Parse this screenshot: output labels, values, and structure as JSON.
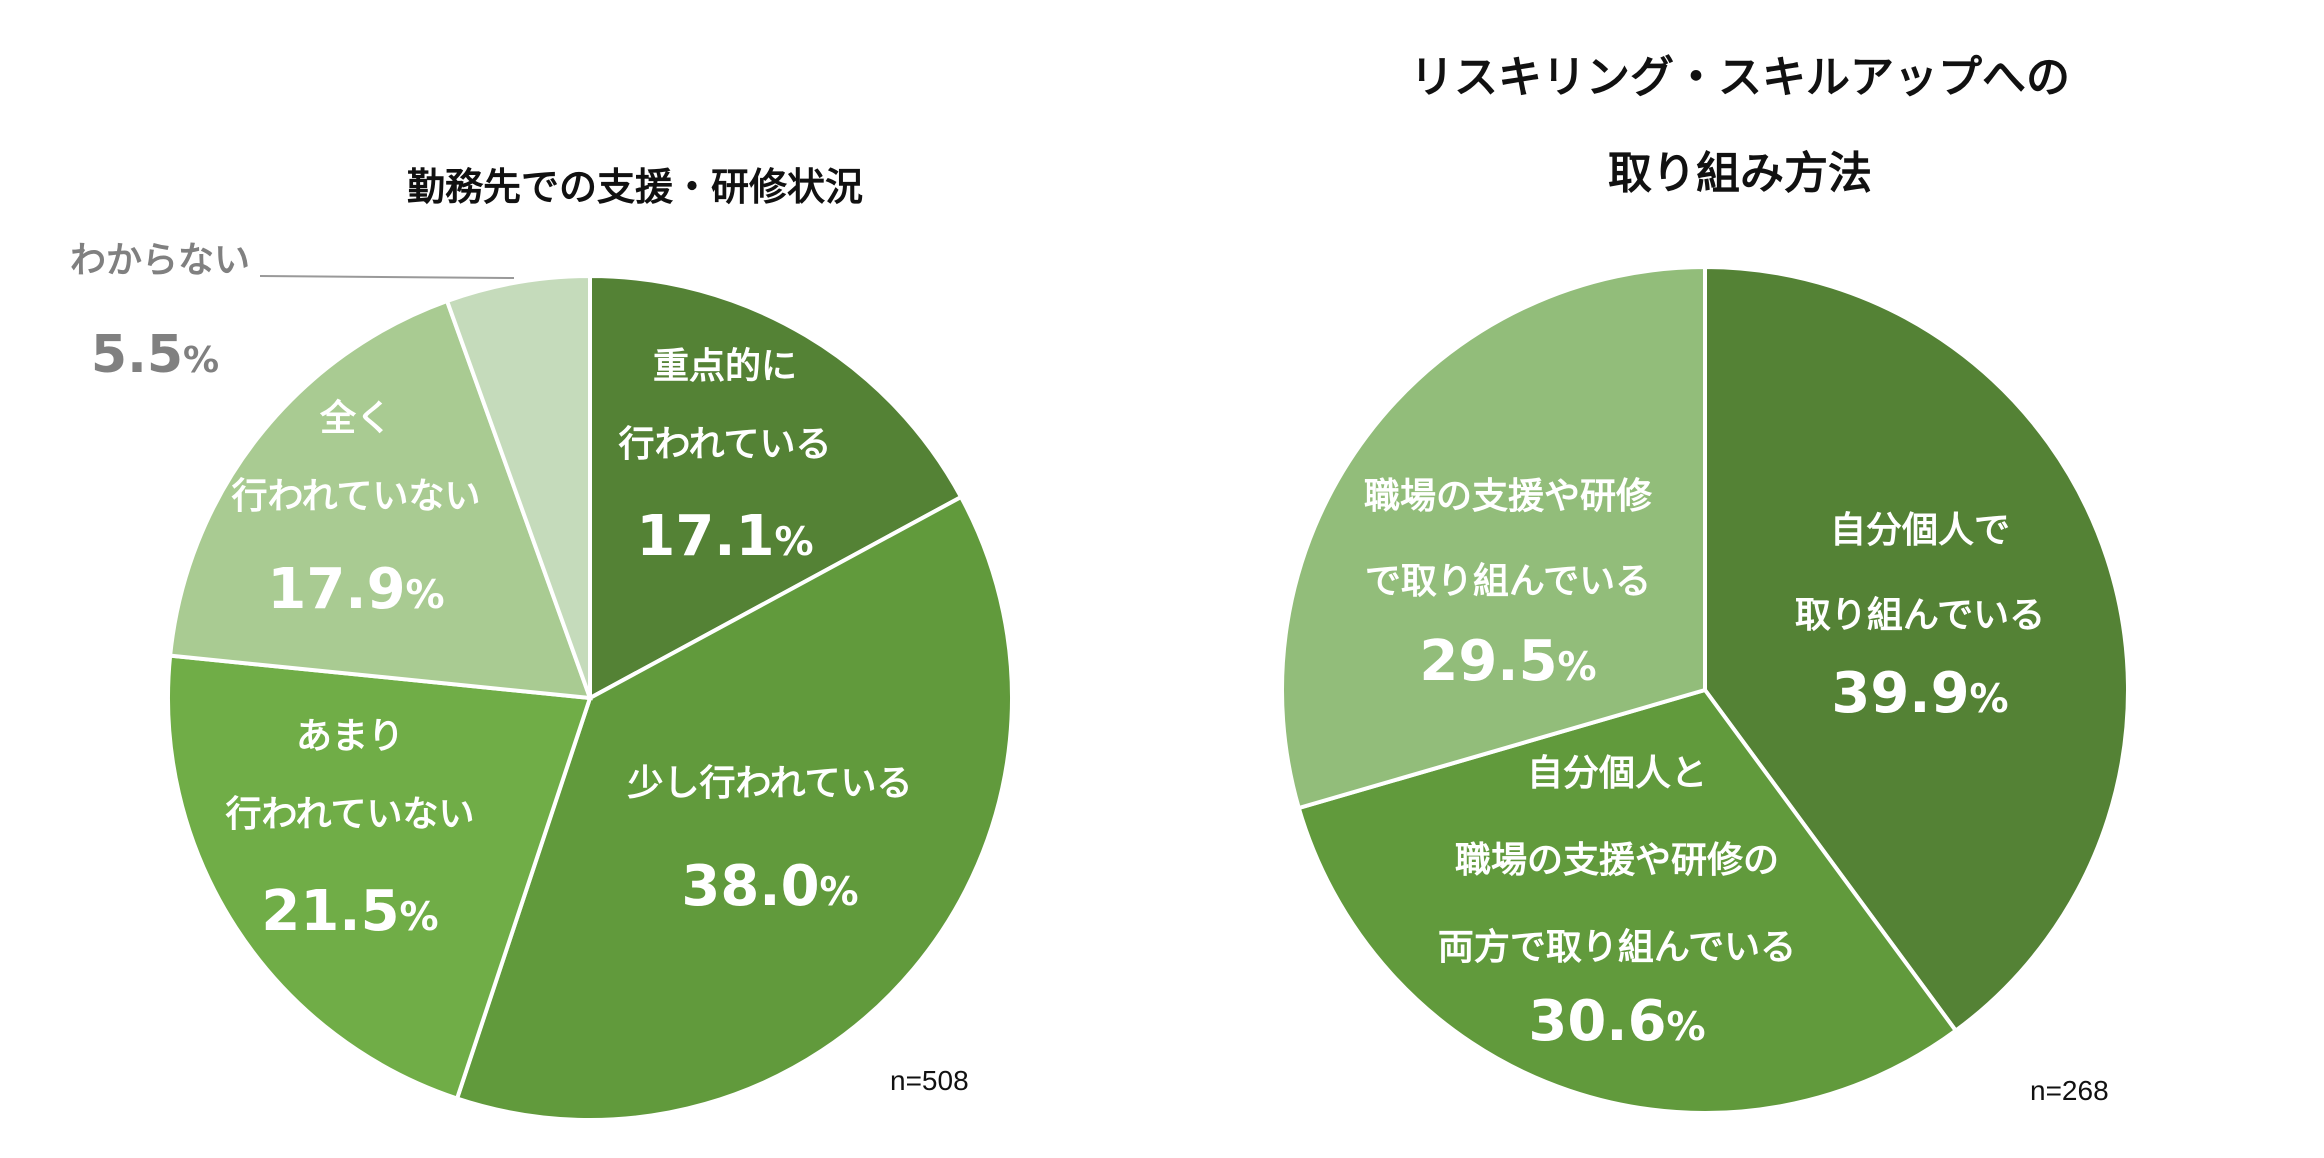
{
  "chart_data": [
    {
      "type": "pie",
      "title": "勤務先での支援・研修状況",
      "n_label": "n=508",
      "slices": [
        {
          "name_lines": [
            "重点的に",
            "行われている"
          ],
          "value": 17.1,
          "value_label": "17.1",
          "color": "#548235",
          "text_color": "#ffffff"
        },
        {
          "name_lines": [
            "少し行われている"
          ],
          "value": 38.0,
          "value_label": "38.0",
          "color": "#619a3c",
          "text_color": "#ffffff"
        },
        {
          "name_lines": [
            "あまり",
            "行われていない"
          ],
          "value": 21.5,
          "value_label": "21.5",
          "color": "#70ad47",
          "text_color": "#ffffff"
        },
        {
          "name_lines": [
            "全く",
            "行われていない"
          ],
          "value": 17.9,
          "value_label": "17.9",
          "color": "#a9cb92",
          "text_color": "#ffffff"
        },
        {
          "name_lines": [
            "わからない"
          ],
          "value": 5.5,
          "value_label": "5.5",
          "color": "#c5dbbb",
          "text_color": "#808080",
          "external": true
        }
      ],
      "percent_sign": "%"
    },
    {
      "type": "pie",
      "title_lines": [
        "リスキリング・スキルアップへの",
        "取り組み方法"
      ],
      "n_label": "n=268",
      "slices": [
        {
          "name_lines": [
            "自分個人で",
            "取り組んでいる"
          ],
          "value": 39.9,
          "value_label": "39.9",
          "color": "#548235",
          "text_color": "#ffffff"
        },
        {
          "name_lines": [
            "自分個人と",
            "職場の支援や研修の",
            "両方で取り組んでいる"
          ],
          "value": 30.6,
          "value_label": "30.6",
          "color": "#619a3c",
          "text_color": "#ffffff"
        },
        {
          "name_lines": [
            "職場の支援や研修",
            "で取り組んでいる"
          ],
          "value": 29.5,
          "value_label": "29.5",
          "color": "#92bd7a",
          "text_color": "#ffffff"
        }
      ],
      "percent_sign": "%"
    }
  ]
}
